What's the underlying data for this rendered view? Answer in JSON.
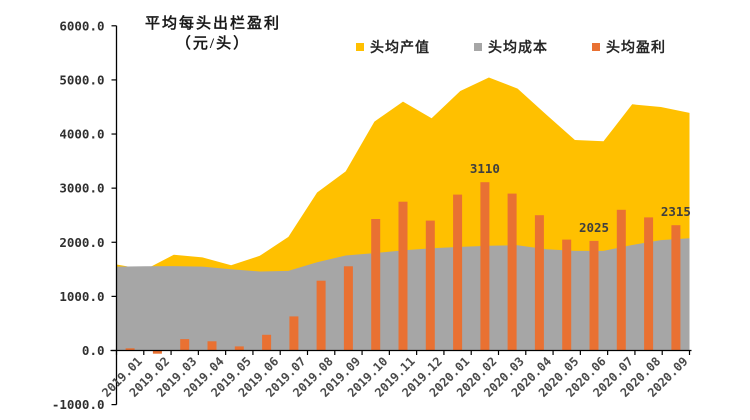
{
  "title": {
    "line1": "平均每头出栏盈利",
    "line2": "（元/头）"
  },
  "legend": [
    {
      "label": "头均产值",
      "color": "#FFC000"
    },
    {
      "label": "头均成本",
      "color": "#A6A6A6"
    },
    {
      "label": "头均盈利",
      "color": "#E97132"
    }
  ],
  "chart_data": {
    "type": "combo",
    "title": "平均每头出栏盈利（元/头）",
    "categories": [
      "2019.01",
      "2019.02",
      "2019.03",
      "2019.04",
      "2019.05",
      "2019.06",
      "2019.07",
      "2019.08",
      "2019.09",
      "2019.10",
      "2019.11",
      "2019.12",
      "2020.01",
      "2020.02",
      "2020.03",
      "2020.04",
      "2020.05",
      "2020.06",
      "2020.07",
      "2020.08",
      "2020.09"
    ],
    "series": [
      {
        "name": "头均产值",
        "chart": "area",
        "color": "#FFC000",
        "values": [
          1590,
          1495,
          1770,
          1720,
          1575,
          1750,
          2100,
          2920,
          3310,
          4230,
          4600,
          4290,
          4795,
          5045,
          4840,
          4360,
          3890,
          3865,
          4550,
          4500,
          4390
        ]
      },
      {
        "name": "头均成本",
        "chart": "area",
        "color": "#A6A6A6",
        "values": [
          1550,
          1555,
          1560,
          1550,
          1500,
          1460,
          1470,
          1630,
          1755,
          1800,
          1850,
          1890,
          1915,
          1935,
          1945,
          1870,
          1840,
          1840,
          1950,
          2040,
          2075
        ]
      },
      {
        "name": "头均盈利",
        "chart": "bar",
        "color": "#E97132",
        "values": [
          40,
          -60,
          210,
          170,
          75,
          290,
          630,
          1290,
          1555,
          2430,
          2750,
          2400,
          2880,
          3110,
          2900,
          2500,
          2050,
          2025,
          2600,
          2460,
          2315
        ]
      }
    ],
    "data_labels": [
      {
        "category": "2020.02",
        "text": "3110"
      },
      {
        "category": "2020.06",
        "text": "2025"
      },
      {
        "category": "2020.09",
        "text": "2315"
      }
    ],
    "y_axis": {
      "min": -1000,
      "max": 6000,
      "step": 1000,
      "tick_labels": [
        "-1000.0",
        "0.0",
        "1000.0",
        "2000.0",
        "3000.0",
        "4000.0",
        "5000.0",
        "6000.0"
      ]
    },
    "grid": false,
    "legend_position": "top-right"
  }
}
